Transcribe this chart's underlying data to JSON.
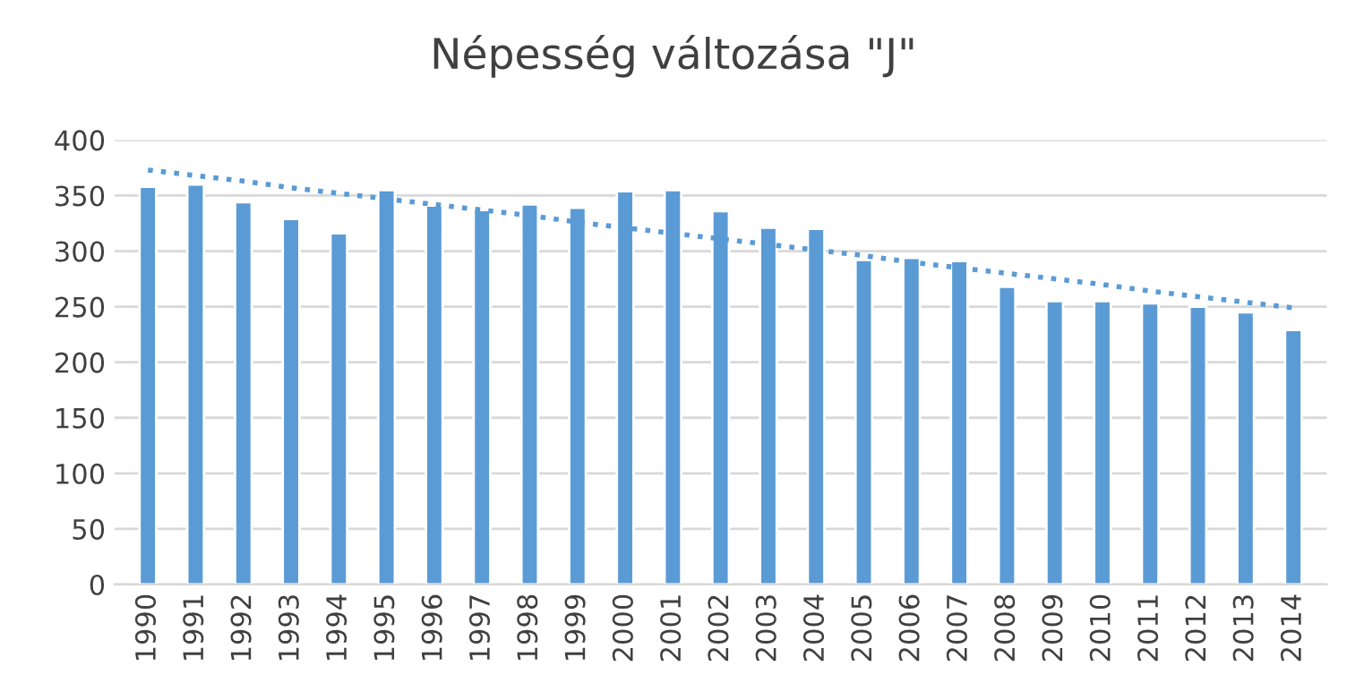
{
  "chart_data": {
    "type": "bar",
    "title": "Népesség változása \"J\"",
    "categories": [
      "1990",
      "1991",
      "1992",
      "1993",
      "1994",
      "1995",
      "1996",
      "1997",
      "1998",
      "1999",
      "2000",
      "2001",
      "2002",
      "2003",
      "2004",
      "2005",
      "2006",
      "2007",
      "2008",
      "2009",
      "2010",
      "2011",
      "2012",
      "2013",
      "2014"
    ],
    "series": [
      {
        "color": "#5b9bd5",
        "values": [
          358,
          360,
          344,
          329,
          316,
          355,
          341,
          337,
          342,
          339,
          354,
          355,
          336,
          321,
          320,
          292,
          294,
          291,
          268,
          255,
          255,
          253,
          250,
          245,
          229
        ]
      },
      {
        "type": "line",
        "color": "#5b9bd5",
        "line_style": "dotted",
        "values": [
          373,
          368,
          363,
          357,
          352,
          347,
          342,
          337,
          332,
          326,
          321,
          316,
          311,
          306,
          301,
          296,
          290,
          285,
          280,
          275,
          270,
          264,
          259,
          254,
          249
        ]
      }
    ],
    "ylim": [
      0,
      400
    ],
    "yticks": [
      0,
      50,
      100,
      150,
      200,
      250,
      300,
      350,
      400
    ],
    "grid": "y",
    "legend": false
  }
}
